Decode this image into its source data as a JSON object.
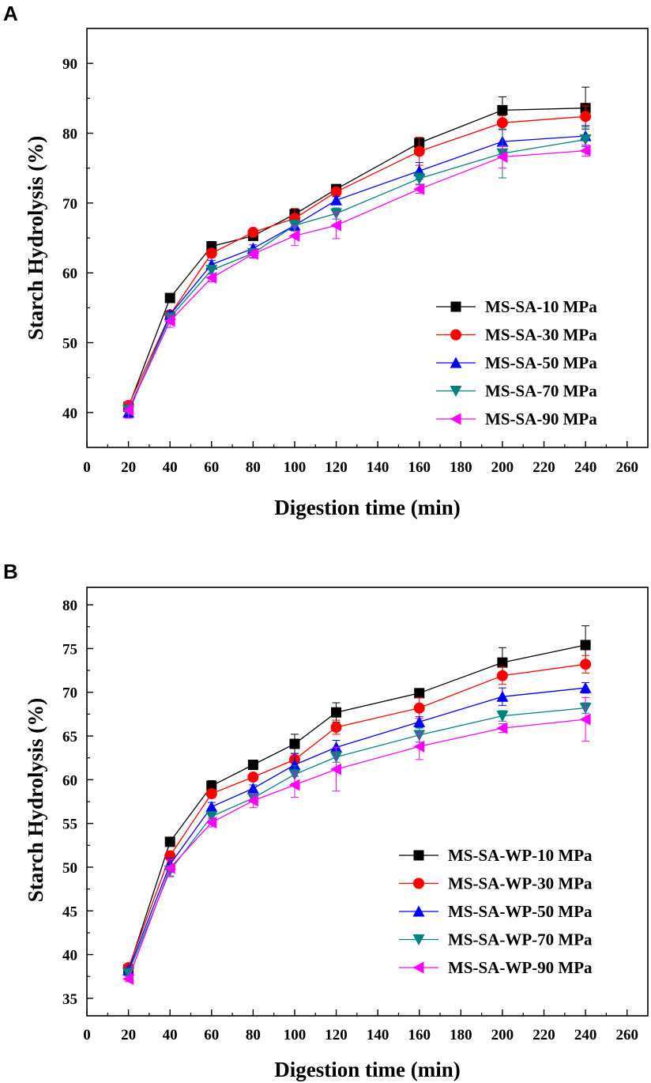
{
  "colors": {
    "black": "#000000",
    "red": "#ff0000",
    "blue": "#0000ff",
    "teal": "#008080",
    "magenta": "#ff00ff"
  },
  "chart_data": [
    {
      "panel": "A",
      "type": "line",
      "title": "",
      "xlabel": "Digestion time (min)",
      "ylabel": "Starch Hydrolysis (%)",
      "xlim": [
        0,
        270
      ],
      "ylim": [
        35,
        95
      ],
      "xticks": [
        0,
        20,
        40,
        60,
        80,
        100,
        120,
        140,
        160,
        180,
        200,
        220,
        240,
        260
      ],
      "yticks": [
        40,
        50,
        60,
        70,
        80,
        90
      ],
      "legend_position": "lower-right",
      "x": [
        20,
        40,
        60,
        80,
        100,
        120,
        160,
        200,
        240
      ],
      "series": [
        {
          "name": "MS-SA-10 MPa",
          "color": "#000000",
          "marker": "square",
          "values": [
            40.8,
            56.4,
            63.8,
            65.3,
            68.4,
            72.0,
            78.6,
            83.3,
            83.6
          ],
          "errors": [
            0.5,
            0.4,
            0.7,
            0.5,
            0.8,
            0.5,
            0.8,
            1.9,
            3.0
          ]
        },
        {
          "name": "MS-SA-30 MPa",
          "color": "#ff0000",
          "marker": "circle",
          "values": [
            41.0,
            54.0,
            62.8,
            65.8,
            67.8,
            71.6,
            77.4,
            81.5,
            82.4
          ],
          "errors": [
            0.5,
            0.5,
            0.6,
            0.5,
            1.4,
            0.5,
            2.0,
            1.0,
            1.5
          ]
        },
        {
          "name": "MS-SA-50 MPa",
          "color": "#0000ff",
          "marker": "triangle-up",
          "values": [
            40.0,
            54.0,
            61.2,
            63.5,
            66.8,
            70.4,
            74.6,
            78.8,
            79.6
          ],
          "errors": [
            0.8,
            0.5,
            0.6,
            0.5,
            0.8,
            0.5,
            1.2,
            1.8,
            1.5
          ]
        },
        {
          "name": "MS-SA-70 MPa",
          "color": "#008080",
          "marker": "triangle-down",
          "values": [
            40.4,
            53.6,
            60.4,
            62.8,
            66.8,
            68.5,
            73.5,
            77.1,
            79.1
          ],
          "errors": [
            0.6,
            0.5,
            0.6,
            0.6,
            0.8,
            0.8,
            0.8,
            3.5,
            1.8
          ]
        },
        {
          "name": "MS-SA-90 MPa",
          "color": "#ff00ff",
          "marker": "triangle-left",
          "values": [
            40.3,
            53.1,
            59.3,
            62.7,
            65.3,
            66.8,
            72.0,
            76.6,
            77.5
          ],
          "errors": [
            1.1,
            0.9,
            0.6,
            0.6,
            1.4,
            1.9,
            0.6,
            1.6,
            0.8
          ]
        }
      ]
    },
    {
      "panel": "B",
      "type": "line",
      "title": "",
      "xlabel": "Digestion time (min)",
      "ylabel": "Starch Hydrolysis (%)",
      "xlim": [
        0,
        270
      ],
      "ylim": [
        33,
        82
      ],
      "xticks": [
        0,
        20,
        40,
        60,
        80,
        100,
        120,
        140,
        160,
        180,
        200,
        220,
        240,
        260
      ],
      "yticks": [
        35,
        40,
        45,
        50,
        55,
        60,
        65,
        70,
        75,
        80
      ],
      "legend_position": "lower-right",
      "x": [
        20,
        40,
        60,
        80,
        100,
        120,
        160,
        200,
        240
      ],
      "series": [
        {
          "name": "MS-SA-WP-10 MPa",
          "color": "#000000",
          "marker": "square",
          "values": [
            38.3,
            52.9,
            59.3,
            61.7,
            64.1,
            67.7,
            69.9,
            73.4,
            75.4
          ],
          "errors": [
            0.3,
            0.3,
            0.6,
            0.5,
            1.1,
            1.1,
            0.5,
            1.7,
            2.2
          ]
        },
        {
          "name": "MS-SA-WP-30 MPa",
          "color": "#ff0000",
          "marker": "circle",
          "values": [
            38.5,
            51.3,
            58.4,
            60.3,
            62.3,
            66.0,
            68.2,
            71.9,
            73.2
          ],
          "errors": [
            0.3,
            0.5,
            0.5,
            0.4,
            0.7,
            0.8,
            1.2,
            1.0,
            1.0
          ]
        },
        {
          "name": "MS-SA-WP-50 MPa",
          "color": "#0000ff",
          "marker": "triangle-up",
          "values": [
            38.2,
            50.3,
            56.9,
            59.0,
            61.7,
            63.7,
            66.6,
            69.5,
            70.5
          ],
          "errors": [
            0.3,
            0.7,
            0.5,
            0.4,
            1.3,
            0.8,
            0.6,
            1.0,
            0.6
          ]
        },
        {
          "name": "MS-SA-WP-70 MPa",
          "color": "#008080",
          "marker": "triangle-down",
          "values": [
            37.9,
            49.6,
            55.8,
            57.9,
            60.6,
            62.6,
            65.1,
            67.3,
            68.2
          ],
          "errors": [
            0.3,
            0.6,
            0.5,
            0.4,
            1.0,
            0.6,
            0.8,
            0.6,
            0.6
          ]
        },
        {
          "name": "MS-SA-WP-90 MPa",
          "color": "#ff00ff",
          "marker": "triangle-left",
          "values": [
            37.2,
            49.9,
            55.1,
            57.6,
            59.4,
            61.2,
            63.8,
            65.9,
            66.9
          ],
          "errors": [
            0.3,
            1.0,
            0.5,
            0.8,
            1.4,
            2.5,
            1.5,
            0.5,
            2.5
          ]
        }
      ]
    }
  ]
}
